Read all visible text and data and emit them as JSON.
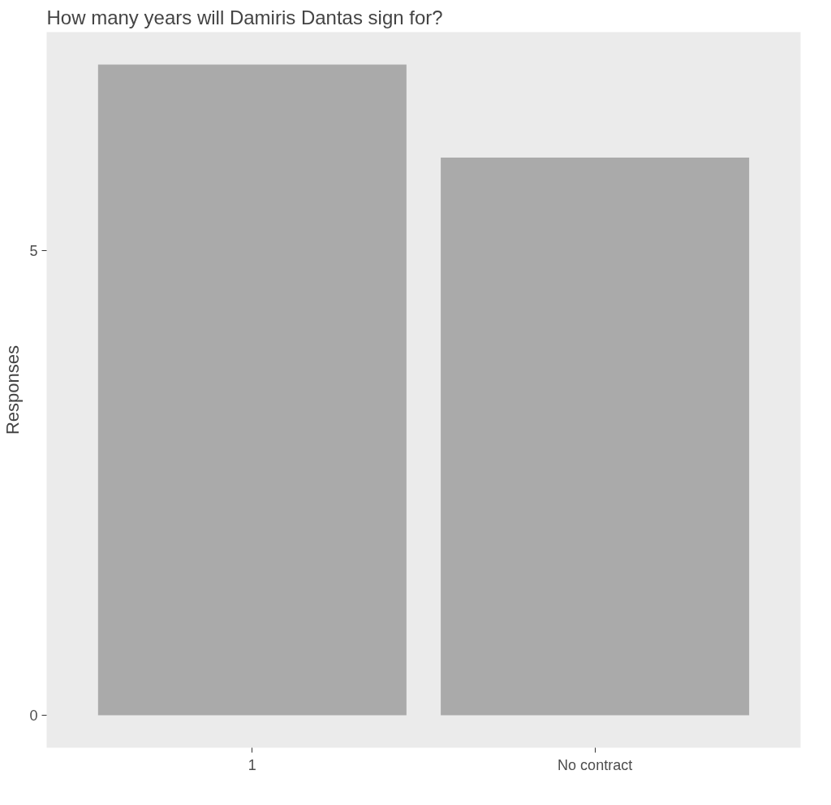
{
  "chart_data": {
    "type": "bar",
    "title": "How many years will Damiris Dantas sign for?",
    "ylabel": "Responses",
    "categories": [
      "1",
      "No contract"
    ],
    "values": [
      7,
      6
    ],
    "color": "#aaaaaa",
    "ylim": [
      -0.35,
      7.35
    ],
    "yticks": [
      0,
      5
    ],
    "grid": false
  }
}
